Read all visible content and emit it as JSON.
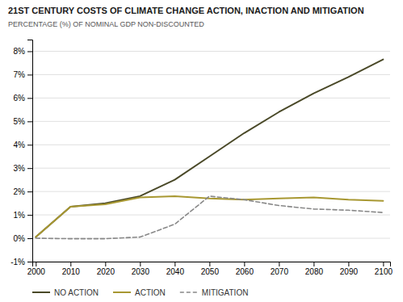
{
  "chart_data": {
    "type": "line",
    "title": "21ST CENTURY COSTS OF CLIMATE CHANGE ACTION, INACTION AND MITIGATION",
    "subtitle": "PERCENTAGE (%) OF NOMINAL GDP NON-DISCOUNTED",
    "x": [
      2000,
      2010,
      2020,
      2030,
      2040,
      2050,
      2060,
      2070,
      2080,
      2090,
      2100
    ],
    "series": [
      {
        "name": "NO ACTION",
        "color": "#4a4928",
        "line_style": "solid",
        "values": [
          0.05,
          1.35,
          1.5,
          1.8,
          2.5,
          3.5,
          4.5,
          5.4,
          6.2,
          6.9,
          7.65
        ]
      },
      {
        "name": "ACTION",
        "color": "#a89832",
        "line_style": "solid",
        "values": [
          0.05,
          1.35,
          1.45,
          1.75,
          1.8,
          1.7,
          1.65,
          1.7,
          1.75,
          1.65,
          1.6
        ]
      },
      {
        "name": "MITIGATION",
        "color": "#888888",
        "line_style": "dashed",
        "values": [
          0.0,
          -0.02,
          -0.02,
          0.05,
          0.6,
          1.8,
          1.65,
          1.4,
          1.25,
          1.2,
          1.1
        ]
      }
    ],
    "xlim": [
      1999,
      2102
    ],
    "xticks": [
      2000,
      2010,
      2020,
      2030,
      2040,
      2050,
      2060,
      2070,
      2080,
      2090,
      2100
    ],
    "ylim": [
      -1,
      8.5
    ],
    "yticks": [
      {
        "value": -1,
        "label": "-1%"
      },
      {
        "value": 0,
        "label": "0%"
      },
      {
        "value": 1,
        "label": "1%"
      },
      {
        "value": 2,
        "label": "2%"
      },
      {
        "value": 3,
        "label": "3%"
      },
      {
        "value": 4,
        "label": "4%"
      },
      {
        "value": 5,
        "label": "5%"
      },
      {
        "value": 6,
        "label": "6%"
      },
      {
        "value": 7,
        "label": "7%"
      },
      {
        "value": 8,
        "label": "8%"
      }
    ],
    "grid": "y",
    "legend": "bottom"
  }
}
